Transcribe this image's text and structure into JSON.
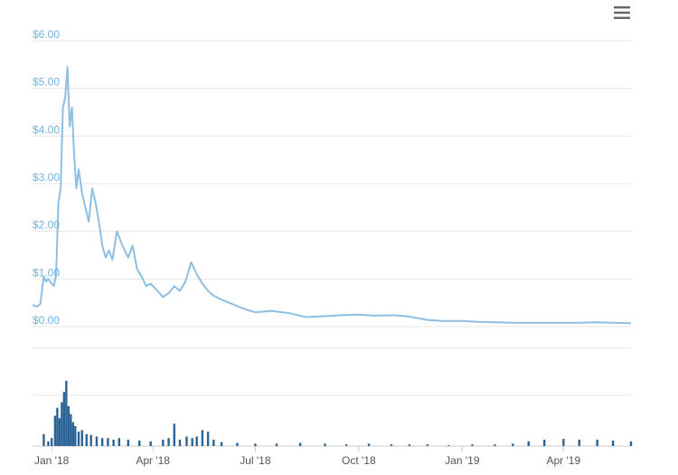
{
  "menu": {
    "icon": "hamburger-menu-icon"
  },
  "colors": {
    "price_line": "#8cbfe3",
    "volume_bar": "#2a6496",
    "y_tick_label": "#6fb4dc",
    "x_tick_label": "#555555",
    "grid": "#e6e6e6",
    "axis": "#cccccc"
  },
  "chart_data": [
    {
      "type": "line",
      "title": "",
      "xlabel": "",
      "ylabel": "",
      "grid": true,
      "ylim": [
        0,
        6
      ],
      "y_ticks": [
        0,
        1,
        2,
        3,
        4,
        5,
        6
      ],
      "y_tick_labels": [
        "$0.00",
        "$1.00",
        "$2.00",
        "$3.00",
        "$4.00",
        "$5.00",
        "$6.00"
      ],
      "xlim": [
        "2017-12-15",
        "2019-05-31"
      ],
      "x_ticks": [
        "2018-01-01",
        "2018-04-01",
        "2018-07-01",
        "2018-10-01",
        "2019-01-01",
        "2019-04-01"
      ],
      "x_tick_labels": [
        "Jan '18",
        "Apr '18",
        "Jul '18",
        "Oct '18",
        "Jan '19",
        "Apr '19"
      ],
      "series": [
        {
          "x": [
            "2017-12-15",
            "2017-12-19",
            "2017-12-22",
            "2017-12-25",
            "2017-12-27",
            "2017-12-29",
            "2018-01-01",
            "2018-01-03",
            "2018-01-05",
            "2018-01-07",
            "2018-01-09",
            "2018-01-11",
            "2018-01-13",
            "2018-01-15",
            "2018-01-17",
            "2018-01-19",
            "2018-01-21",
            "2018-01-23",
            "2018-01-25",
            "2018-01-28",
            "2018-01-31",
            "2018-02-03",
            "2018-02-06",
            "2018-02-09",
            "2018-02-12",
            "2018-02-15",
            "2018-02-18",
            "2018-02-21",
            "2018-02-24",
            "2018-02-28",
            "2018-03-05",
            "2018-03-10",
            "2018-03-14",
            "2018-03-18",
            "2018-03-22",
            "2018-03-26",
            "2018-03-30",
            "2018-04-05",
            "2018-04-10",
            "2018-04-15",
            "2018-04-20",
            "2018-04-25",
            "2018-04-30",
            "2018-05-05",
            "2018-05-10",
            "2018-05-15",
            "2018-05-20",
            "2018-05-25",
            "2018-05-31",
            "2018-06-08",
            "2018-06-16",
            "2018-06-24",
            "2018-07-01",
            "2018-07-15",
            "2018-08-01",
            "2018-08-15",
            "2018-09-01",
            "2018-09-15",
            "2018-10-01",
            "2018-10-15",
            "2018-11-01",
            "2018-11-15",
            "2018-12-01",
            "2018-12-15",
            "2019-01-01",
            "2019-01-15",
            "2019-02-01",
            "2019-02-15",
            "2019-03-01",
            "2019-03-15",
            "2019-04-01",
            "2019-04-15",
            "2019-05-01",
            "2019-05-15",
            "2019-05-31"
          ],
          "values": [
            0.45,
            0.42,
            0.48,
            1.05,
            0.95,
            1.0,
            0.9,
            0.85,
            1.1,
            2.6,
            2.9,
            4.6,
            4.8,
            5.45,
            4.2,
            4.6,
            3.6,
            2.9,
            3.3,
            2.8,
            2.5,
            2.2,
            2.9,
            2.6,
            2.2,
            1.7,
            1.45,
            1.6,
            1.4,
            2.0,
            1.7,
            1.45,
            1.7,
            1.2,
            1.05,
            0.85,
            0.9,
            0.75,
            0.62,
            0.7,
            0.85,
            0.75,
            0.95,
            1.35,
            1.1,
            0.9,
            0.75,
            0.65,
            0.58,
            0.5,
            0.42,
            0.35,
            0.3,
            0.33,
            0.28,
            0.2,
            0.22,
            0.24,
            0.25,
            0.23,
            0.24,
            0.21,
            0.14,
            0.12,
            0.12,
            0.1,
            0.09,
            0.08,
            0.08,
            0.08,
            0.08,
            0.08,
            0.09,
            0.08,
            0.07
          ]
        }
      ]
    },
    {
      "type": "bar",
      "title": "",
      "xlabel": "",
      "ylabel": "",
      "grid": true,
      "ylim": [
        0,
        100
      ],
      "x": [
        "2017-12-25",
        "2017-12-29",
        "2018-01-01",
        "2018-01-04",
        "2018-01-06",
        "2018-01-08",
        "2018-01-10",
        "2018-01-12",
        "2018-01-14",
        "2018-01-16",
        "2018-01-18",
        "2018-01-20",
        "2018-01-22",
        "2018-01-25",
        "2018-01-28",
        "2018-02-01",
        "2018-02-05",
        "2018-02-10",
        "2018-02-15",
        "2018-02-20",
        "2018-02-25",
        "2018-03-02",
        "2018-03-10",
        "2018-03-20",
        "2018-03-30",
        "2018-04-10",
        "2018-04-15",
        "2018-04-20",
        "2018-04-25",
        "2018-05-01",
        "2018-05-06",
        "2018-05-10",
        "2018-05-15",
        "2018-05-20",
        "2018-05-25",
        "2018-06-01",
        "2018-06-15",
        "2018-07-01",
        "2018-07-20",
        "2018-08-10",
        "2018-09-01",
        "2018-09-20",
        "2018-10-10",
        "2018-10-30",
        "2018-11-15",
        "2018-12-01",
        "2018-12-20",
        "2019-01-10",
        "2019-01-30",
        "2019-02-15",
        "2019-03-01",
        "2019-03-15",
        "2019-04-01",
        "2019-04-15",
        "2019-05-01",
        "2019-05-15",
        "2019-05-31"
      ],
      "values": [
        15,
        6,
        10,
        38,
        48,
        35,
        55,
        68,
        82,
        50,
        40,
        30,
        25,
        18,
        20,
        15,
        14,
        12,
        10,
        10,
        8,
        10,
        8,
        7,
        6,
        8,
        10,
        28,
        8,
        12,
        10,
        12,
        20,
        18,
        8,
        5,
        4,
        3,
        3,
        4,
        3,
        2,
        3,
        2,
        2,
        2,
        1,
        2,
        2,
        3,
        6,
        8,
        9,
        8,
        8,
        7,
        6
      ]
    }
  ]
}
